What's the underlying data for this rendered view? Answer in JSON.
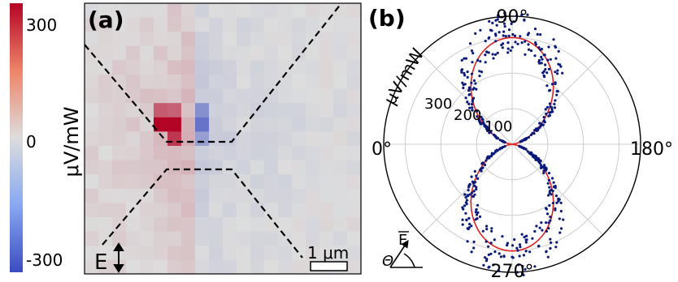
{
  "colorbar": {
    "label": "μV/mW",
    "ticks": [
      "300",
      "0",
      "-300"
    ],
    "range": [
      -300,
      300
    ],
    "colors": {
      "negative": "#3b4cc0",
      "neutral": "#dddddd",
      "positive": "#b40426"
    }
  },
  "panel_a": {
    "label": "(a)",
    "field_label": "E",
    "field_icon": "double-vertical-arrow-icon",
    "scalebar_label": "1 μm",
    "background": "#dcdcdc"
  },
  "panel_b": {
    "label": "(b)",
    "radial_label": "μV/mW",
    "radial_ticks": [
      "100",
      "200",
      "300"
    ],
    "angle_labels": {
      "deg0": "0°",
      "deg90": "90°",
      "deg180": "180°",
      "deg270": "270°"
    },
    "inset_E": "E",
    "inset_theta": "Θ",
    "point_color": "#0a1a7a",
    "fit_color": "#e02020"
  },
  "chart_data": [
    {
      "type": "heatmap",
      "title": "",
      "panel": "(a)",
      "colorbar_label": "μV/mW",
      "colorbar_ticks": [
        300,
        0,
        -300
      ],
      "value_range": [
        -300,
        300
      ],
      "hotspots": [
        {
          "row": 8,
          "col": 5,
          "value": 300
        },
        {
          "row": 8,
          "col": 6,
          "value": 330
        },
        {
          "row": 7,
          "col": 5,
          "value": 180
        },
        {
          "row": 7,
          "col": 6,
          "value": 170
        },
        {
          "row": 9,
          "col": 6,
          "value": 230
        },
        {
          "row": 7,
          "col": 8,
          "value": -160
        },
        {
          "row": 8,
          "col": 8,
          "value": -220
        },
        {
          "row": 9,
          "col": 8,
          "value": -130
        }
      ],
      "scalebar": "1 μm",
      "annotation": "E"
    },
    {
      "type": "scatter",
      "polar": true,
      "panel": "(b)",
      "title": "",
      "r_label": "μV/mW",
      "r_ticks": [
        100,
        200,
        300
      ],
      "r_max": 360,
      "theta_labels": [
        "0°",
        "90°",
        "180°",
        "270°"
      ],
      "fit": {
        "form": "r = A·sin²θ",
        "A": 300
      },
      "series": [
        {
          "name": "",
          "kind": "measured points",
          "lobes": [
            {
              "theta_center_deg": 90,
              "r_peak": 330
            },
            {
              "theta_center_deg": 270,
              "r_peak": 330
            }
          ]
        },
        {
          "name": "",
          "kind": "fit curve",
          "amplitude": 300
        }
      ]
    }
  ]
}
